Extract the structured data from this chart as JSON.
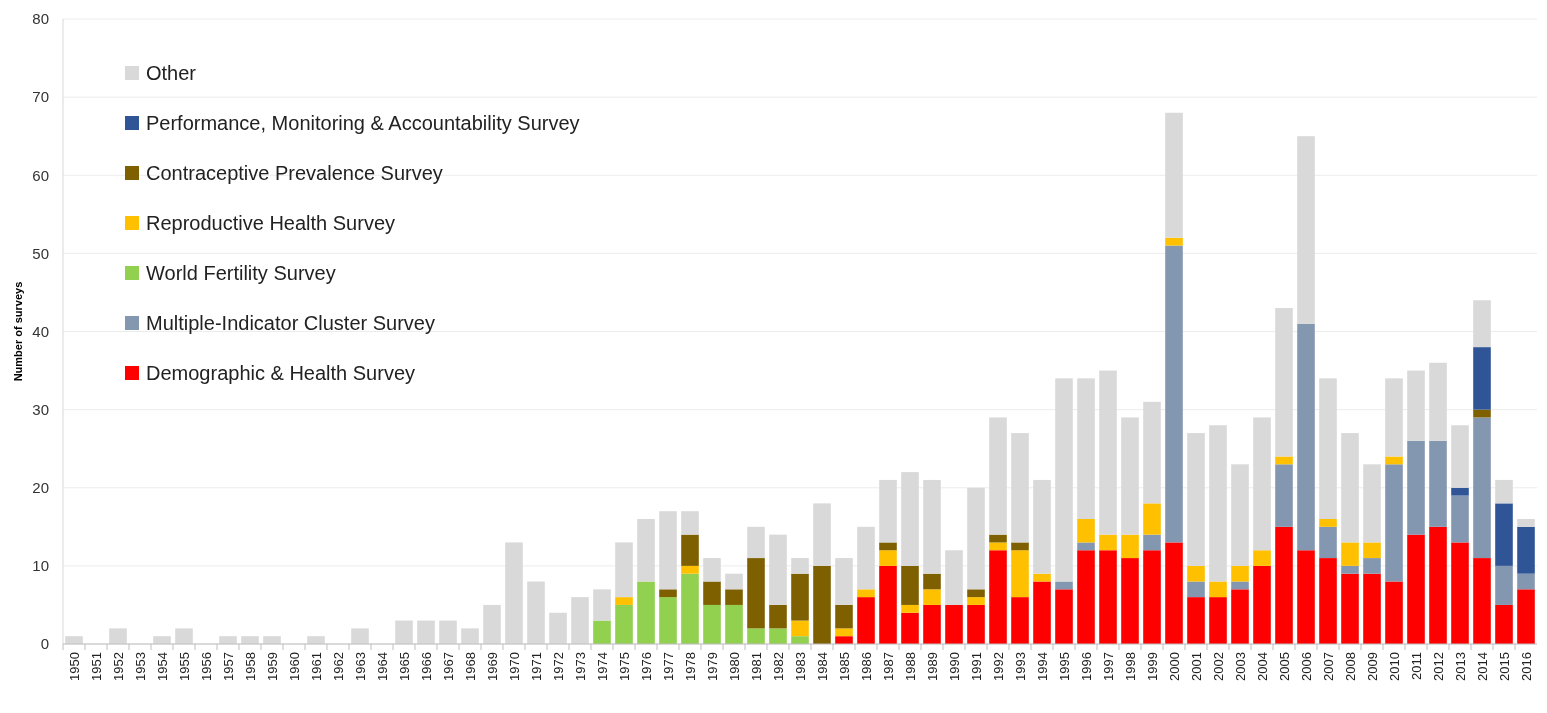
{
  "chart_data": {
    "type": "bar",
    "stacked": true,
    "ylabel": "Number of surveys",
    "categories": [
      "1950",
      "1951",
      "1952",
      "1953",
      "1954",
      "1955",
      "1956",
      "1957",
      "1958",
      "1959",
      "1960",
      "1961",
      "1962",
      "1963",
      "1964",
      "1965",
      "1966",
      "1967",
      "1968",
      "1969",
      "1970",
      "1971",
      "1972",
      "1973",
      "1974",
      "1975",
      "1976",
      "1977",
      "1978",
      "1979",
      "1980",
      "1981",
      "1982",
      "1983",
      "1984",
      "1985",
      "1986",
      "1987",
      "1988",
      "1989",
      "1990",
      "1991",
      "1992",
      "1993",
      "1994",
      "1995",
      "1996",
      "1997",
      "1998",
      "1999",
      "2000",
      "2001",
      "2002",
      "2003",
      "2004",
      "2005",
      "2006",
      "2007",
      "2008",
      "2009",
      "2010",
      "2011",
      "2012",
      "2013",
      "2014",
      "2015",
      "2016"
    ],
    "series": [
      {
        "name": "Demographic & Health Survey",
        "color": "#ff0000",
        "values": [
          0,
          0,
          0,
          0,
          0,
          0,
          0,
          0,
          0,
          0,
          0,
          0,
          0,
          0,
          0,
          0,
          0,
          0,
          0,
          0,
          0,
          0,
          0,
          0,
          0,
          0,
          0,
          0,
          0,
          0,
          0,
          0,
          0,
          0,
          0,
          1,
          6,
          10,
          4,
          5,
          5,
          5,
          12,
          6,
          8,
          7,
          12,
          12,
          11,
          12,
          13,
          6,
          6,
          7,
          10,
          15,
          12,
          11,
          9,
          9,
          8,
          14,
          15,
          13,
          11,
          5,
          7
        ]
      },
      {
        "name": "Multiple-Indicator Cluster Survey",
        "color": "#8497b0",
        "values": [
          0,
          0,
          0,
          0,
          0,
          0,
          0,
          0,
          0,
          0,
          0,
          0,
          0,
          0,
          0,
          0,
          0,
          0,
          0,
          0,
          0,
          0,
          0,
          0,
          0,
          0,
          0,
          0,
          0,
          0,
          0,
          0,
          0,
          0,
          0,
          0,
          0,
          0,
          0,
          0,
          0,
          0,
          0,
          0,
          0,
          1,
          1,
          0,
          0,
          2,
          38,
          2,
          0,
          1,
          0,
          8,
          29,
          4,
          1,
          2,
          15,
          12,
          11,
          6,
          18,
          5,
          2
        ]
      },
      {
        "name": "World Fertility Survey",
        "color": "#92d050",
        "values": [
          0,
          0,
          0,
          0,
          0,
          0,
          0,
          0,
          0,
          0,
          0,
          0,
          0,
          0,
          0,
          0,
          0,
          0,
          0,
          0,
          0,
          0,
          0,
          0,
          3,
          5,
          8,
          6,
          9,
          5,
          5,
          2,
          2,
          1,
          0,
          0,
          0,
          0,
          0,
          0,
          0,
          0,
          0,
          0,
          0,
          0,
          0,
          0,
          0,
          0,
          0,
          0,
          0,
          0,
          0,
          0,
          0,
          0,
          0,
          0,
          0,
          0,
          0,
          0,
          0,
          0,
          0
        ]
      },
      {
        "name": "Reproductive Health Survey",
        "color": "#ffc000",
        "values": [
          0,
          0,
          0,
          0,
          0,
          0,
          0,
          0,
          0,
          0,
          0,
          0,
          0,
          0,
          0,
          0,
          0,
          0,
          0,
          0,
          0,
          0,
          0,
          0,
          0,
          1,
          0,
          0,
          1,
          0,
          0,
          0,
          0,
          2,
          0,
          1,
          1,
          2,
          1,
          2,
          0,
          1,
          1,
          6,
          1,
          0,
          3,
          2,
          3,
          4,
          1,
          2,
          2,
          2,
          2,
          1,
          0,
          1,
          3,
          2,
          1,
          0,
          0,
          0,
          0,
          0,
          0
        ]
      },
      {
        "name": "Contraceptive Prevalence Survey",
        "color": "#7f6000",
        "values": [
          0,
          0,
          0,
          0,
          0,
          0,
          0,
          0,
          0,
          0,
          0,
          0,
          0,
          0,
          0,
          0,
          0,
          0,
          0,
          0,
          0,
          0,
          0,
          0,
          0,
          0,
          0,
          1,
          4,
          3,
          2,
          9,
          3,
          6,
          10,
          3,
          0,
          1,
          5,
          2,
          0,
          1,
          1,
          1,
          0,
          0,
          0,
          0,
          0,
          0,
          0,
          0,
          0,
          0,
          0,
          0,
          0,
          0,
          0,
          0,
          0,
          0,
          0,
          0,
          1,
          0,
          0
        ]
      },
      {
        "name": "Performance, Monitoring & Accountability Survey",
        "color": "#2f5597",
        "values": [
          0,
          0,
          0,
          0,
          0,
          0,
          0,
          0,
          0,
          0,
          0,
          0,
          0,
          0,
          0,
          0,
          0,
          0,
          0,
          0,
          0,
          0,
          0,
          0,
          0,
          0,
          0,
          0,
          0,
          0,
          0,
          0,
          0,
          0,
          0,
          0,
          0,
          0,
          0,
          0,
          0,
          0,
          0,
          0,
          0,
          0,
          0,
          0,
          0,
          0,
          0,
          0,
          0,
          0,
          0,
          0,
          0,
          0,
          0,
          0,
          0,
          0,
          0,
          1,
          8,
          8,
          6
        ]
      },
      {
        "name": "Other",
        "color": "#d9d9d9",
        "values": [
          1,
          0,
          2,
          0,
          1,
          2,
          0,
          1,
          1,
          1,
          0,
          1,
          0,
          2,
          0,
          3,
          3,
          3,
          2,
          5,
          13,
          8,
          4,
          6,
          4,
          7,
          8,
          10,
          3,
          3,
          2,
          4,
          9,
          2,
          8,
          6,
          8,
          8,
          12,
          12,
          7,
          13,
          15,
          14,
          12,
          26,
          18,
          21,
          15,
          13,
          16,
          17,
          20,
          13,
          17,
          19,
          24,
          18,
          14,
          10,
          10,
          9,
          10,
          8,
          6,
          3,
          1
        ]
      }
    ],
    "ylim": [
      0,
      80
    ],
    "yticks": [
      0,
      10,
      20,
      30,
      40,
      50,
      60,
      70,
      80
    ],
    "grid": "y",
    "legend": "top left"
  }
}
